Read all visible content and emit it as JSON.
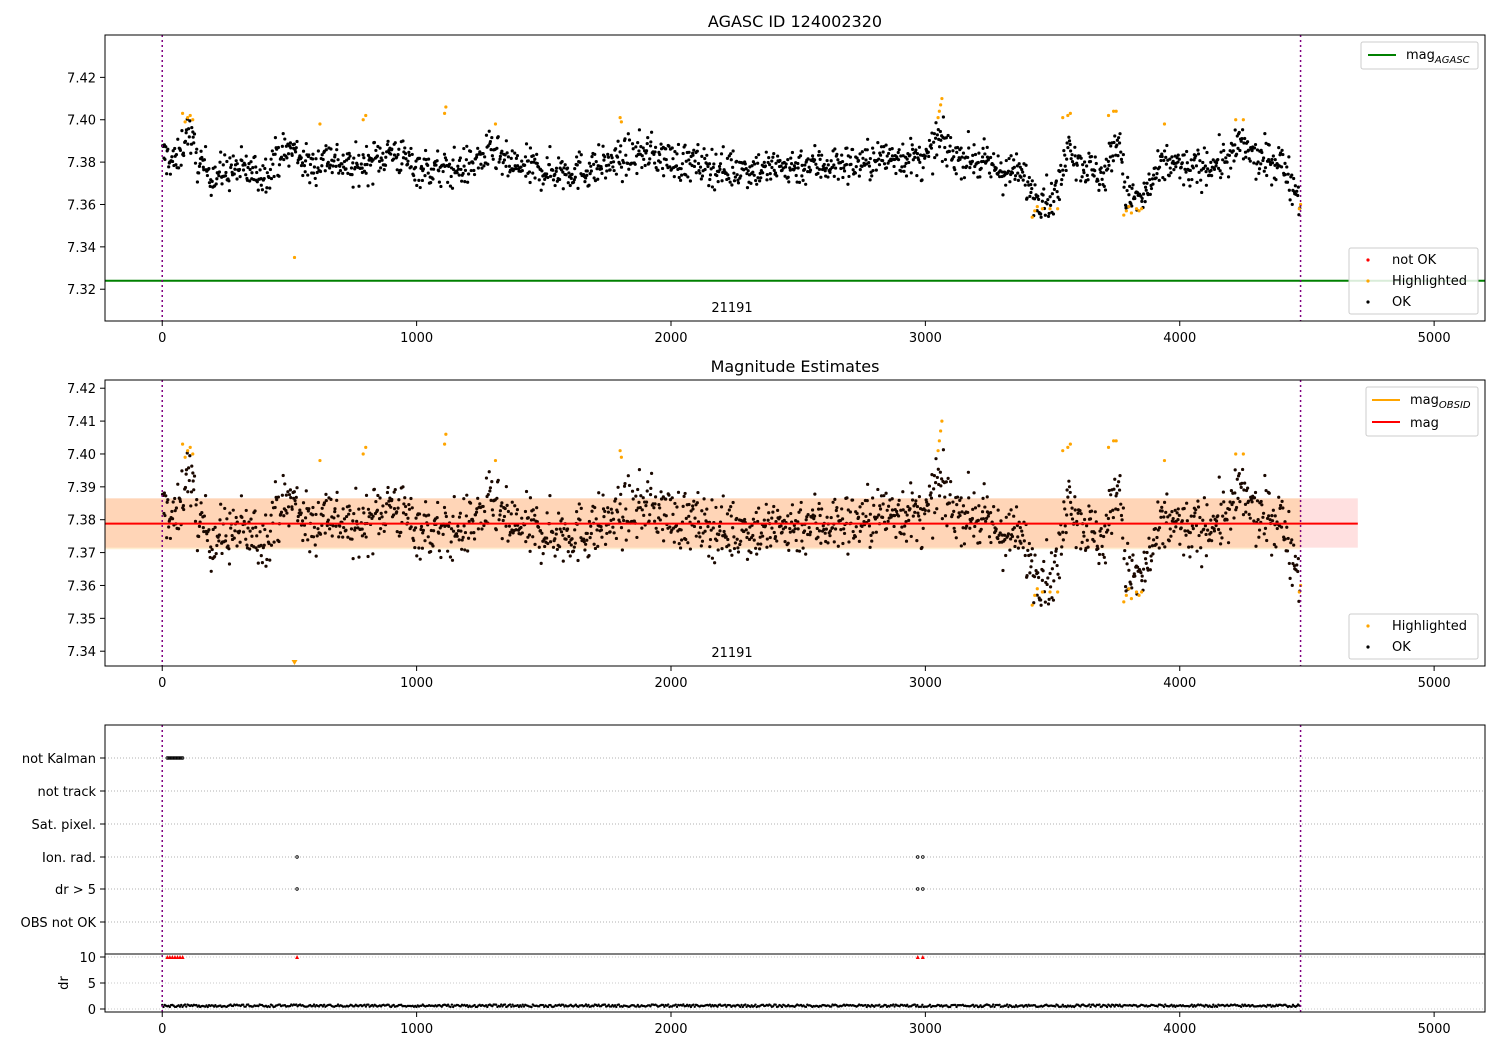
{
  "figure": {
    "title_top": "AGASC ID 124002320",
    "title_mid": "Magnitude Estimates"
  },
  "chart_data": [
    {
      "type": "scatter",
      "title": "AGASC ID 124002320",
      "xlim": [
        -225,
        5200
      ],
      "ylim": [
        7.305,
        7.44
      ],
      "xticks": [
        0,
        1000,
        2000,
        3000,
        4000,
        5000
      ],
      "yticks": [
        7.32,
        7.34,
        7.36,
        7.38,
        7.4,
        7.42
      ],
      "grid": false,
      "obsid_label": "21191",
      "obs_start": 0,
      "obs_end": 4475,
      "mag_agasc": 7.324,
      "legend_upper": {
        "placement": "upper right",
        "label_main": "mag",
        "label_sub": "AGASC",
        "color": "#008000"
      },
      "legend_lower": {
        "placement": "lower right",
        "entries": [
          {
            "label": "not OK",
            "color": "#ff0000"
          },
          {
            "label": "Highlighted",
            "color": "#ffa500"
          },
          {
            "label": "OK",
            "color": "#000000"
          }
        ]
      },
      "series": [
        {
          "name": "OK",
          "color": "#000000",
          "profile": [
            [
              0,
              7.383
            ],
            [
              60,
              7.38
            ],
            [
              100,
              7.396
            ],
            [
              140,
              7.38
            ],
            [
              200,
              7.374
            ],
            [
              300,
              7.377
            ],
            [
              400,
              7.374
            ],
            [
              450,
              7.383
            ],
            [
              520,
              7.386
            ],
            [
              580,
              7.377
            ],
            [
              650,
              7.383
            ],
            [
              700,
              7.38
            ],
            [
              750,
              7.377
            ],
            [
              900,
              7.385
            ],
            [
              1000,
              7.378
            ],
            [
              1100,
              7.376
            ],
            [
              1200,
              7.378
            ],
            [
              1300,
              7.385
            ],
            [
              1350,
              7.379
            ],
            [
              1500,
              7.376
            ],
            [
              1650,
              7.376
            ],
            [
              1800,
              7.381
            ],
            [
              1900,
              7.385
            ],
            [
              2000,
              7.381
            ],
            [
              2200,
              7.377
            ],
            [
              2400,
              7.377
            ],
            [
              2550,
              7.379
            ],
            [
              2700,
              7.379
            ],
            [
              2900,
              7.383
            ],
            [
              3000,
              7.38
            ],
            [
              3050,
              7.391
            ],
            [
              3100,
              7.384
            ],
            [
              3200,
              7.381
            ],
            [
              3300,
              7.376
            ],
            [
              3380,
              7.374
            ],
            [
              3430,
              7.365
            ],
            [
              3500,
              7.362
            ],
            [
              3540,
              7.374
            ],
            [
              3560,
              7.392
            ],
            [
              3600,
              7.38
            ],
            [
              3700,
              7.373
            ],
            [
              3760,
              7.392
            ],
            [
              3790,
              7.364
            ],
            [
              3850,
              7.362
            ],
            [
              3900,
              7.372
            ],
            [
              3950,
              7.38
            ],
            [
              4050,
              7.376
            ],
            [
              4150,
              7.38
            ],
            [
              4200,
              7.382
            ],
            [
              4240,
              7.389
            ],
            [
              4300,
              7.381
            ],
            [
              4400,
              7.38
            ],
            [
              4470,
              7.364
            ]
          ],
          "scatter": 0.0045,
          "n": 1700
        },
        {
          "name": "Highlighted",
          "color": "#ffa500",
          "points": [
            [
              80,
              7.403
            ],
            [
              90,
              7.399
            ],
            [
              100,
              7.401
            ],
            [
              110,
              7.402
            ],
            [
              120,
              7.4
            ],
            [
              520,
              7.335
            ],
            [
              620,
              7.398
            ],
            [
              790,
              7.4
            ],
            [
              800,
              7.402
            ],
            [
              1110,
              7.403
            ],
            [
              1115,
              7.406
            ],
            [
              1310,
              7.398
            ],
            [
              1800,
              7.401
            ],
            [
              1805,
              7.399
            ],
            [
              3050,
              7.401
            ],
            [
              3055,
              7.404
            ],
            [
              3060,
              7.407
            ],
            [
              3065,
              7.41
            ],
            [
              3420,
              7.354
            ],
            [
              3430,
              7.357
            ],
            [
              3440,
              7.359
            ],
            [
              3460,
              7.358
            ],
            [
              3490,
              7.358
            ],
            [
              3520,
              7.358
            ],
            [
              3540,
              7.401
            ],
            [
              3560,
              7.402
            ],
            [
              3570,
              7.403
            ],
            [
              3720,
              7.402
            ],
            [
              3740,
              7.404
            ],
            [
              3750,
              7.404
            ],
            [
              3780,
              7.355
            ],
            [
              3790,
              7.357
            ],
            [
              3800,
              7.359
            ],
            [
              3810,
              7.356
            ],
            [
              3830,
              7.358
            ],
            [
              3840,
              7.357
            ],
            [
              3850,
              7.358
            ],
            [
              3940,
              7.398
            ],
            [
              4220,
              7.4
            ],
            [
              4250,
              7.4
            ],
            [
              4470,
              7.358
            ],
            [
              4475,
              7.36
            ]
          ]
        }
      ]
    },
    {
      "type": "scatter",
      "title": "Magnitude Estimates",
      "xlim": [
        -225,
        5200
      ],
      "ylim": [
        7.3355,
        7.4225
      ],
      "xticks": [
        0,
        1000,
        2000,
        3000,
        4000,
        5000
      ],
      "yticks": [
        7.34,
        7.35,
        7.36,
        7.37,
        7.38,
        7.39,
        7.4,
        7.41,
        7.42
      ],
      "grid": false,
      "obsid_label": "21191",
      "obs_start": 0,
      "obs_end": 4475,
      "mag": 7.3788,
      "mag_band_obsid": [
        7.371,
        7.3865
      ],
      "mag_band": [
        7.3715,
        7.3865
      ],
      "band_x_extent": [
        -225,
        4700
      ],
      "legend_upper": {
        "placement": "upper right",
        "entries": [
          {
            "label_main": "mag",
            "label_sub": "OBSID",
            "color": "#ffa500"
          },
          {
            "label_main": "mag",
            "label_sub": "",
            "color": "#ff0000"
          }
        ]
      },
      "legend_lower": {
        "placement": "lower right",
        "entries": [
          {
            "label": "Highlighted",
            "color": "#ffa500"
          },
          {
            "label": "OK",
            "color": "#000000"
          }
        ]
      },
      "offscale_marker": {
        "x": 520,
        "direction": "down",
        "color": "#ffa500"
      }
    },
    {
      "type": "scatter",
      "title": "",
      "xlim": [
        -225,
        5200
      ],
      "xticks": [
        0,
        1000,
        2000,
        3000,
        4000,
        5000
      ],
      "flag_rows": [
        "not Kalman",
        "not track",
        "Sat. pixel.",
        "Ion. rad.",
        "dr > 5",
        "OBS not OK"
      ],
      "flag_points": {
        "not Kalman": [
          [
            20,
            80
          ]
        ],
        "Ion. rad.": [
          [
            530,
            530
          ],
          [
            2970,
            2970
          ],
          [
            2990,
            2990
          ]
        ],
        "dr > 5": [
          [
            530,
            530
          ],
          [
            2970,
            2970
          ],
          [
            2990,
            2990
          ]
        ]
      },
      "dr_axis": {
        "ylabel": "dr",
        "yticks": [
          0,
          5,
          10
        ],
        "ylim": [
          -0.5,
          10.5
        ]
      },
      "dr_red_points": [
        20,
        30,
        40,
        50,
        60,
        70,
        80,
        530,
        2970,
        2990
      ],
      "obs_start": 0,
      "obs_end": 4475
    }
  ]
}
